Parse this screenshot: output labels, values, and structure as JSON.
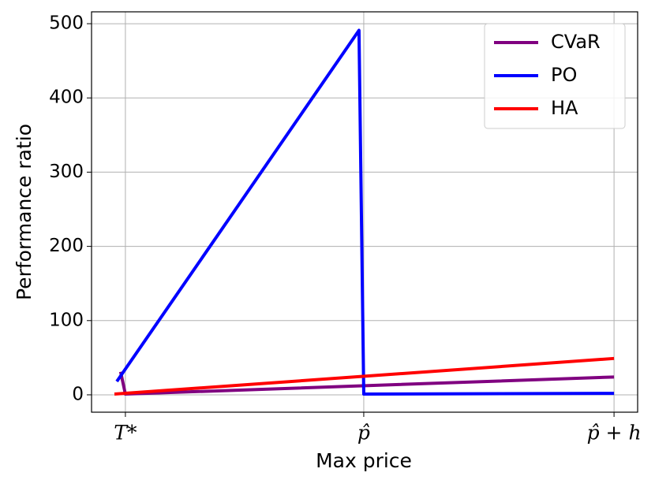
{
  "chart_data": {
    "type": "line",
    "xlabel": "Max price",
    "ylabel": "Performance ratio",
    "xlim": [
      -0.142,
      2.149
    ],
    "ylim": [
      -23.4,
      516
    ],
    "xticks": [
      {
        "value": 0,
        "label": "T*"
      },
      {
        "value": 1,
        "label": "p̂"
      },
      {
        "value": 2.05,
        "label": "p̂ + h"
      }
    ],
    "yticks": [
      0,
      100,
      200,
      300,
      400,
      500
    ],
    "grid": true,
    "legend": "upper right",
    "series": [
      {
        "name": "CVaR",
        "color": "#800080",
        "x": [
          -0.02,
          0,
          2.05
        ],
        "values": [
          31,
          1,
          24
        ]
      },
      {
        "name": "PO",
        "color": "#0000ff",
        "x": [
          -0.036,
          0.98,
          1.0,
          2.05
        ],
        "values": [
          18,
          491,
          1,
          2
        ]
      },
      {
        "name": "HA",
        "color": "#ff0000",
        "x": [
          -0.046,
          2.05
        ],
        "values": [
          1,
          49
        ]
      }
    ]
  }
}
